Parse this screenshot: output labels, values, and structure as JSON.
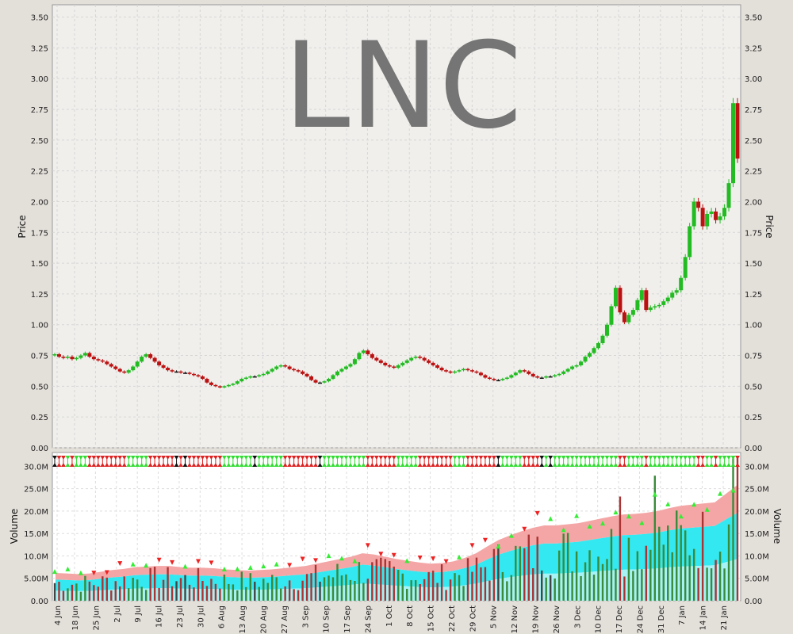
{
  "chart_data": [
    {
      "type": "candlestick",
      "title": "LNC",
      "ylabel": "Price",
      "ylim": [
        0,
        3.6
      ],
      "yticks": [
        "0.00",
        "0.25",
        "0.50",
        "0.75",
        "1.00",
        "1.25",
        "1.50",
        "1.75",
        "2.00",
        "2.25",
        "2.50",
        "2.75",
        "3.00",
        "3.25",
        "3.50"
      ],
      "grid": true,
      "colors": {
        "up": "#22bb22",
        "down": "#bb1111",
        "flat": "#111111",
        "panel": "#f0efec"
      },
      "closes": [
        0.76,
        0.74,
        0.73,
        0.74,
        0.72,
        0.73,
        0.75,
        0.77,
        0.74,
        0.72,
        0.71,
        0.7,
        0.68,
        0.66,
        0.64,
        0.62,
        0.61,
        0.63,
        0.66,
        0.7,
        0.74,
        0.76,
        0.73,
        0.7,
        0.67,
        0.65,
        0.63,
        0.62,
        0.62,
        0.61,
        0.61,
        0.6,
        0.59,
        0.58,
        0.56,
        0.53,
        0.51,
        0.5,
        0.49,
        0.5,
        0.51,
        0.52,
        0.54,
        0.56,
        0.57,
        0.58,
        0.58,
        0.59,
        0.6,
        0.62,
        0.64,
        0.66,
        0.67,
        0.66,
        0.64,
        0.63,
        0.62,
        0.6,
        0.58,
        0.55,
        0.53,
        0.53,
        0.54,
        0.56,
        0.59,
        0.62,
        0.64,
        0.66,
        0.68,
        0.72,
        0.77,
        0.79,
        0.76,
        0.73,
        0.71,
        0.69,
        0.67,
        0.66,
        0.65,
        0.67,
        0.69,
        0.71,
        0.73,
        0.74,
        0.73,
        0.71,
        0.69,
        0.67,
        0.65,
        0.63,
        0.62,
        0.61,
        0.62,
        0.63,
        0.64,
        0.63,
        0.62,
        0.61,
        0.59,
        0.57,
        0.56,
        0.55,
        0.55,
        0.56,
        0.57,
        0.59,
        0.61,
        0.63,
        0.62,
        0.6,
        0.58,
        0.57,
        0.57,
        0.58,
        0.58,
        0.59,
        0.6,
        0.62,
        0.64,
        0.66,
        0.67,
        0.7,
        0.74,
        0.77,
        0.81,
        0.85,
        0.91,
        1.0,
        1.15,
        1.3,
        1.1,
        1.02,
        1.08,
        1.12,
        1.2,
        1.28,
        1.12,
        1.14,
        1.15,
        1.16,
        1.19,
        1.22,
        1.26,
        1.28,
        1.38,
        1.55,
        1.8,
        2.0,
        1.95,
        1.8,
        1.9,
        1.92,
        1.85,
        1.88,
        1.95,
        2.15,
        2.8,
        2.35
      ]
    },
    {
      "type": "bar",
      "ylabel": "Volume",
      "ylim": [
        0,
        32000000
      ],
      "yticks": [
        "0.00",
        "5.00M",
        "10.0M",
        "15.0M",
        "20.0M",
        "25.0M",
        "30.0M"
      ],
      "xticks": [
        "4 Jun",
        "18 Jun",
        "25 Jun",
        "2 Jul",
        "9 Jul",
        "16 Jul",
        "23 Jul",
        "30 Jul",
        "6 Aug",
        "13 Aug",
        "20 Aug",
        "27 Aug",
        "3 Sep",
        "10 Sep",
        "17 Sep",
        "24 Sep",
        "1 Oct",
        "8 Oct",
        "15 Oct",
        "22 Oct",
        "29 Oct",
        "5 Nov",
        "12 Nov",
        "19 Nov",
        "26 Nov",
        "3 Dec",
        "10 Dec",
        "17 Dec",
        "24 Dec",
        "31 Dec",
        "7 Jan",
        "14 Jan",
        "21 Jan"
      ],
      "bands": {
        "avg": [
          4.8,
          4.7,
          4.6,
          4.7,
          5.0,
          5.3,
          5.5,
          5.8,
          5.9,
          6.0,
          6.0,
          5.8,
          5.7,
          5.7,
          5.6,
          5.4,
          5.3,
          5.2,
          5.3,
          5.4,
          5.6,
          5.8,
          6.0,
          6.4,
          6.8,
          7.2,
          7.6,
          8.2,
          8.0,
          7.6,
          7.2,
          6.9,
          6.6,
          6.4,
          6.5,
          6.8,
          7.4,
          8.2,
          9.4,
          10.5,
          11.3,
          12.0,
          12.6,
          13.0,
          13.0,
          13.2,
          13.4,
          13.8,
          14.2,
          14.6,
          14.9,
          15.0,
          15.2,
          15.5,
          16.0,
          16.4,
          16.6,
          16.8,
          17.0,
          18.5,
          20.0
        ]
      },
      "colors": {
        "up": "#22bb22",
        "down": "#cc1111",
        "bar": "#555555",
        "band_pink": "#f4a6a6",
        "band_cyan": "#33e8f0"
      }
    }
  ]
}
